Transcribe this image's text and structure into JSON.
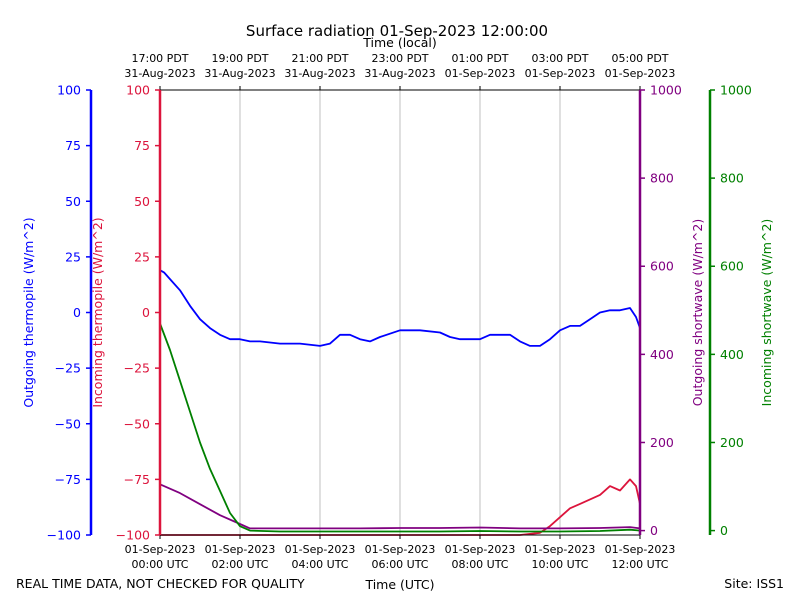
{
  "chart_data": {
    "type": "line",
    "title": "Surface radiation 01-Sep-2023 12:00:00",
    "top_axis_label": "Time (local)",
    "xlabel": "Time (UTC)",
    "footer_left": "REAL TIME DATA, NOT CHECKED FOR QUALITY",
    "footer_right": "Site: ISS1",
    "x_range_hours": [
      0,
      12
    ],
    "grid": "vertical",
    "bottom_ticks": [
      {
        "hour": 0,
        "line1": "01-Sep-2023",
        "line2": "00:00 UTC"
      },
      {
        "hour": 2,
        "line1": "01-Sep-2023",
        "line2": "02:00 UTC"
      },
      {
        "hour": 4,
        "line1": "01-Sep-2023",
        "line2": "04:00 UTC"
      },
      {
        "hour": 6,
        "line1": "01-Sep-2023",
        "line2": "06:00 UTC"
      },
      {
        "hour": 8,
        "line1": "01-Sep-2023",
        "line2": "08:00 UTC"
      },
      {
        "hour": 10,
        "line1": "01-Sep-2023",
        "line2": "10:00 UTC"
      },
      {
        "hour": 12,
        "line1": "01-Sep-2023",
        "line2": "12:00 UTC"
      }
    ],
    "top_ticks": [
      {
        "hour": 0,
        "line1": "17:00 PDT",
        "line2": "31-Aug-2023"
      },
      {
        "hour": 2,
        "line1": "19:00 PDT",
        "line2": "31-Aug-2023"
      },
      {
        "hour": 4,
        "line1": "21:00 PDT",
        "line2": "31-Aug-2023"
      },
      {
        "hour": 6,
        "line1": "23:00 PDT",
        "line2": "31-Aug-2023"
      },
      {
        "hour": 8,
        "line1": "01:00 PDT",
        "line2": "01-Sep-2023"
      },
      {
        "hour": 10,
        "line1": "03:00 PDT",
        "line2": "01-Sep-2023"
      },
      {
        "hour": 12,
        "line1": "05:00 PDT",
        "line2": "01-Sep-2023"
      }
    ],
    "axes": [
      {
        "id": "out_thermo",
        "label": "Outgoing thermopile (W/m^2)",
        "color": "#0000ff",
        "ylim": [
          -100,
          100
        ],
        "ticks": [
          -100,
          -75,
          -50,
          -25,
          0,
          25,
          50,
          75,
          100
        ]
      },
      {
        "id": "in_thermo",
        "label": "Incoming thermopile (W/m^2)",
        "color": "#dc143c",
        "ylim": [
          -100,
          100
        ],
        "ticks": [
          -100,
          -75,
          -50,
          -25,
          0,
          25,
          50,
          75,
          100
        ]
      },
      {
        "id": "out_sw",
        "label": "Outgoing shortwave (W/m^2)",
        "color": "#800080",
        "ylim": [
          -10,
          1000
        ],
        "ticks": [
          0,
          200,
          400,
          600,
          800,
          1000
        ]
      },
      {
        "id": "in_sw",
        "label": "Incoming shortwave (W/m^2)",
        "color": "#008000",
        "ylim": [
          -10,
          1000
        ],
        "ticks": [
          0,
          200,
          400,
          600,
          800,
          1000
        ]
      }
    ],
    "series": [
      {
        "axis": "out_thermo",
        "color": "#0000ff",
        "x": [
          0,
          0.1,
          0.25,
          0.5,
          0.75,
          1,
          1.25,
          1.5,
          1.75,
          2,
          2.25,
          2.5,
          3,
          3.5,
          4,
          4.25,
          4.5,
          4.75,
          5,
          5.25,
          5.5,
          6,
          6.25,
          6.5,
          7,
          7.25,
          7.5,
          8,
          8.25,
          8.5,
          8.75,
          9,
          9.25,
          9.5,
          9.75,
          10,
          10.25,
          10.5,
          10.75,
          11,
          11.25,
          11.5,
          11.75,
          11.9,
          12
        ],
        "y": [
          19,
          18,
          15,
          10,
          3,
          -3,
          -7,
          -10,
          -12,
          -12,
          -13,
          -13,
          -14,
          -14,
          -15,
          -14,
          -10,
          -10,
          -12,
          -13,
          -11,
          -8,
          -8,
          -8,
          -9,
          -11,
          -12,
          -12,
          -10,
          -10,
          -10,
          -13,
          -15,
          -15,
          -12,
          -8,
          -6,
          -6,
          -3,
          0,
          1,
          1,
          2,
          -2,
          -7
        ]
      },
      {
        "axis": "in_thermo",
        "color": "#dc143c",
        "x": [
          0,
          0.5,
          1,
          1.5,
          2,
          3,
          4,
          5,
          6,
          7,
          8,
          9,
          9.5,
          9.75,
          10,
          10.25,
          10.5,
          10.75,
          11,
          11.25,
          11.5,
          11.75,
          11.9,
          12
        ],
        "y": [
          -100,
          -100,
          -100,
          -100,
          -100,
          -100,
          -100,
          -100,
          -100,
          -100,
          -100,
          -100,
          -99,
          -96,
          -92,
          -88,
          -86,
          -84,
          -82,
          -78,
          -80,
          -75,
          -78,
          -86
        ]
      },
      {
        "axis": "out_sw",
        "color": "#800080",
        "x": [
          0,
          0.5,
          1,
          1.5,
          2,
          2.25,
          3,
          4,
          5,
          6,
          7,
          8,
          9,
          10,
          11,
          11.75,
          12
        ],
        "y": [
          105,
          85,
          60,
          35,
          15,
          5,
          5,
          5,
          5,
          6,
          6,
          7,
          5,
          5,
          6,
          8,
          5
        ]
      },
      {
        "axis": "in_sw",
        "color": "#008000",
        "x": [
          0,
          0.25,
          0.5,
          0.75,
          1,
          1.25,
          1.5,
          1.75,
          2,
          2.25,
          3,
          4,
          5,
          6,
          7,
          8,
          9,
          10,
          11,
          11.75,
          12
        ],
        "y": [
          470,
          410,
          340,
          270,
          200,
          140,
          90,
          40,
          10,
          0,
          -2,
          -2,
          -2,
          -2,
          -2,
          -1,
          -2,
          -2,
          -1,
          2,
          0
        ]
      }
    ]
  }
}
